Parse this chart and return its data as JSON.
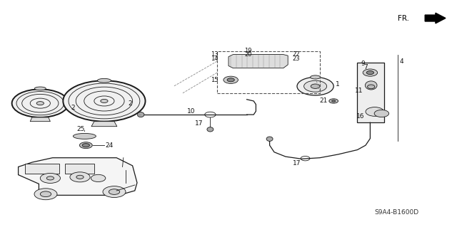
{
  "bg_color": "#ffffff",
  "line_color": "#1a1a1a",
  "fig_width": 6.4,
  "fig_height": 3.19,
  "dpi": 100,
  "diagram_code": "S9A4-B1600D",
  "fr_label": "FR.",
  "lw_thin": 0.6,
  "lw_med": 0.9,
  "lw_thick": 1.4
}
